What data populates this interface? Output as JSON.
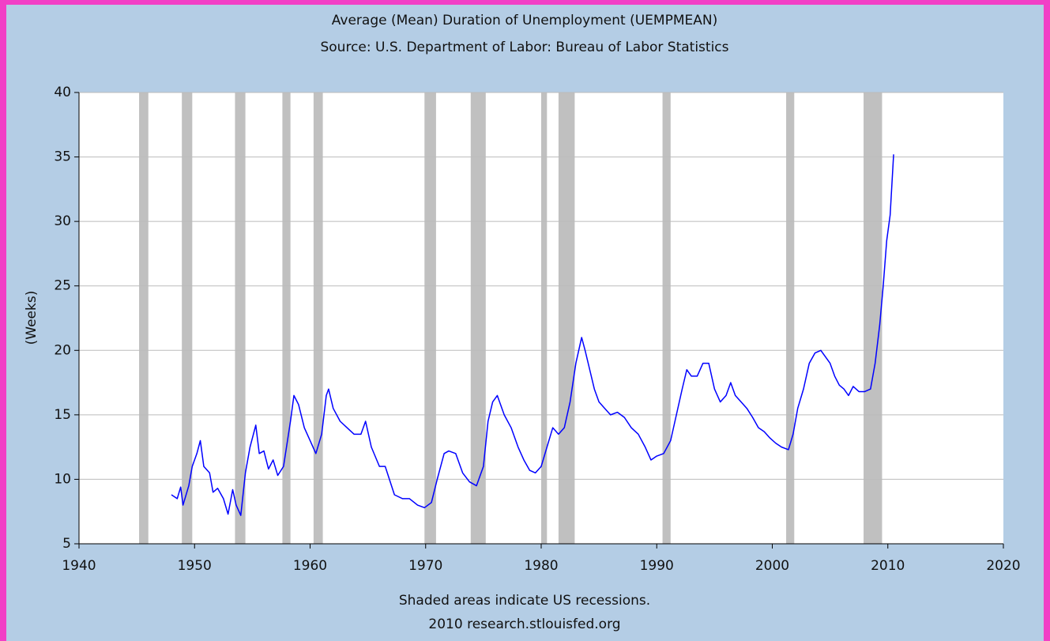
{
  "chart_data": {
    "type": "line",
    "title": "Average (Mean) Duration of Unemployment (UEMPMEAN)",
    "subtitle": "Source: U.S. Department of Labor: Bureau of Labor Statistics",
    "y_label": "(Weeks)",
    "footnotes": [
      "Shaded areas indicate US recessions.",
      "2010 research.stlouisfed.org"
    ],
    "xlim": [
      1940,
      2020
    ],
    "xticks": [
      1940,
      1950,
      1960,
      1970,
      1980,
      1990,
      2000,
      2010,
      2020
    ],
    "ylim": [
      5,
      40
    ],
    "yticks": [
      5,
      10,
      15,
      20,
      25,
      30,
      35,
      40
    ],
    "grid": true,
    "recession_color": "#c0c0c0",
    "recessions": [
      [
        1945.2,
        1946.0
      ],
      [
        1948.9,
        1949.8
      ],
      [
        1953.5,
        1954.4
      ],
      [
        1957.6,
        1958.3
      ],
      [
        1960.3,
        1961.1
      ],
      [
        1969.9,
        1970.9
      ],
      [
        1973.9,
        1975.2
      ],
      [
        1980.0,
        1980.5
      ],
      [
        1981.5,
        1982.9
      ],
      [
        1990.5,
        1991.2
      ],
      [
        2001.2,
        2001.9
      ],
      [
        2007.9,
        2009.5
      ]
    ],
    "series": [
      {
        "color": "#0000ff",
        "x": [
          1948.0,
          1948.5,
          1948.8,
          1949.0,
          1949.5,
          1949.8,
          1950.2,
          1950.5,
          1950.8,
          1951.3,
          1951.6,
          1952.0,
          1952.5,
          1952.9,
          1953.3,
          1953.6,
          1954.0,
          1954.4,
          1954.8,
          1955.3,
          1955.6,
          1956.0,
          1956.4,
          1956.8,
          1957.2,
          1957.7,
          1958.3,
          1958.6,
          1959.0,
          1959.5,
          1960.0,
          1960.5,
          1961.0,
          1961.4,
          1961.6,
          1962.0,
          1962.6,
          1963.2,
          1963.8,
          1964.4,
          1964.8,
          1965.3,
          1966.0,
          1966.5,
          1967.3,
          1968.0,
          1968.6,
          1969.3,
          1969.9,
          1970.5,
          1971.0,
          1971.6,
          1972.0,
          1972.6,
          1973.2,
          1973.8,
          1974.4,
          1975.0,
          1975.4,
          1975.8,
          1976.2,
          1976.8,
          1977.4,
          1978.0,
          1978.5,
          1979.0,
          1979.5,
          1980.0,
          1980.5,
          1981.0,
          1981.5,
          1982.0,
          1982.5,
          1983.0,
          1983.5,
          1983.8,
          1984.2,
          1984.6,
          1985.0,
          1985.5,
          1986.0,
          1986.6,
          1987.2,
          1987.8,
          1988.4,
          1989.0,
          1989.5,
          1990.0,
          1990.6,
          1991.2,
          1991.7,
          1992.2,
          1992.6,
          1993.0,
          1993.5,
          1994.0,
          1994.5,
          1995.0,
          1995.5,
          1996.0,
          1996.4,
          1996.8,
          1997.3,
          1997.8,
          1998.3,
          1998.8,
          1999.3,
          1999.8,
          2000.3,
          2000.8,
          2001.4,
          2001.8,
          2002.2,
          2002.7,
          2003.2,
          2003.7,
          2004.2,
          2004.6,
          2005.0,
          2005.4,
          2005.8,
          2006.2,
          2006.6,
          2007.0,
          2007.5,
          2008.0,
          2008.5,
          2008.9,
          2009.3,
          2009.6,
          2009.9,
          2010.2,
          2010.5
        ],
        "values": [
          8.8,
          8.5,
          9.4,
          8.0,
          9.5,
          11.0,
          12.0,
          13.0,
          11.0,
          10.5,
          9.0,
          9.3,
          8.5,
          7.3,
          9.2,
          8.0,
          7.2,
          10.5,
          12.5,
          14.2,
          12.0,
          12.2,
          10.8,
          11.5,
          10.3,
          11.0,
          14.5,
          16.5,
          15.8,
          14.0,
          13.0,
          12.0,
          13.5,
          16.5,
          17.0,
          15.5,
          14.5,
          14.0,
          13.5,
          13.5,
          14.5,
          12.5,
          11.0,
          11.0,
          8.8,
          8.5,
          8.5,
          8.0,
          7.8,
          8.2,
          10.0,
          12.0,
          12.2,
          12.0,
          10.5,
          9.8,
          9.5,
          11.0,
          14.5,
          16.0,
          16.5,
          15.0,
          14.0,
          12.5,
          11.5,
          10.7,
          10.5,
          11.0,
          12.5,
          14.0,
          13.5,
          14.0,
          16.0,
          19.0,
          21.0,
          20.0,
          18.5,
          17.0,
          16.0,
          15.5,
          15.0,
          15.2,
          14.8,
          14.0,
          13.5,
          12.5,
          11.5,
          11.8,
          12.0,
          13.0,
          15.0,
          17.0,
          18.5,
          18.0,
          18.0,
          19.0,
          19.0,
          17.0,
          16.0,
          16.5,
          17.5,
          16.5,
          16.0,
          15.5,
          14.8,
          14.0,
          13.7,
          13.2,
          12.8,
          12.5,
          12.3,
          13.5,
          15.5,
          17.0,
          19.0,
          19.8,
          20.0,
          19.5,
          19.0,
          18.0,
          17.3,
          17.0,
          16.5,
          17.2,
          16.8,
          16.8,
          17.0,
          19.0,
          22.0,
          25.0,
          28.5,
          30.5,
          35.2
        ]
      }
    ]
  }
}
